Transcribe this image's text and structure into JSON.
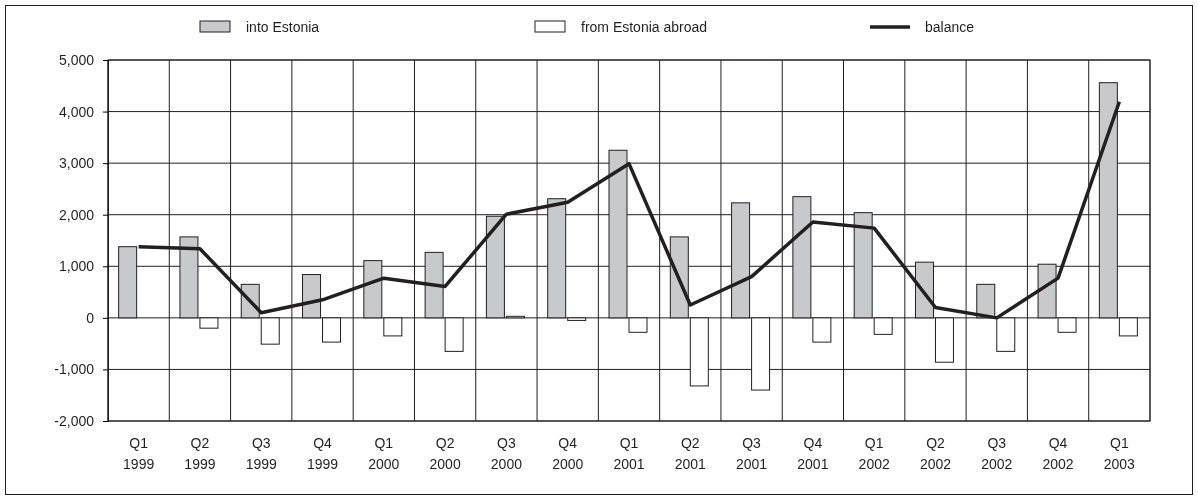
{
  "chart_data": {
    "type": "bar",
    "categories": [
      "Q1 1999",
      "Q2 1999",
      "Q3 1999",
      "Q4 1999",
      "Q1 2000",
      "Q2 2000",
      "Q3 2000",
      "Q4 2000",
      "Q1 2001",
      "Q2 2001",
      "Q3 2001",
      "Q4 2001",
      "Q1 2002",
      "Q2 2002",
      "Q3 2002",
      "Q4 2002",
      "Q1 2003"
    ],
    "series": [
      {
        "name": "into Estonia",
        "color": "#c8c9cb",
        "values": [
          1380,
          1570,
          650,
          840,
          1110,
          1270,
          1970,
          2310,
          3250,
          1570,
          2230,
          2350,
          2040,
          1080,
          650,
          1040,
          4560
        ]
      },
      {
        "name": "from Estonia abroad",
        "color": "#ffffff",
        "values": [
          null,
          -200,
          -510,
          -470,
          -350,
          -650,
          30,
          -50,
          -280,
          -1320,
          -1400,
          -470,
          -320,
          -860,
          -650,
          -280,
          -350
        ]
      },
      {
        "name": "balance",
        "type": "line",
        "color": "#231f20",
        "values": [
          1380,
          1340,
          100,
          350,
          770,
          610,
          2010,
          2240,
          2990,
          250,
          800,
          1860,
          1740,
          200,
          0,
          770,
          4190
        ]
      }
    ],
    "ylim": [
      -2000,
      5000
    ],
    "yticks": [
      {
        "value": -2000,
        "label": "-2,000"
      },
      {
        "value": -1000,
        "label": "-1,000"
      },
      0,
      {
        "value": 1000,
        "label": "1,000"
      },
      {
        "value": 2000,
        "label": "2,000"
      },
      {
        "value": 3000,
        "label": "3,000"
      },
      {
        "value": 4000,
        "label": "4,000"
      },
      {
        "value": 5000,
        "label": "5,000"
      }
    ],
    "grid": true,
    "legend": "top",
    "marker": "none",
    "line_style": "solid"
  }
}
